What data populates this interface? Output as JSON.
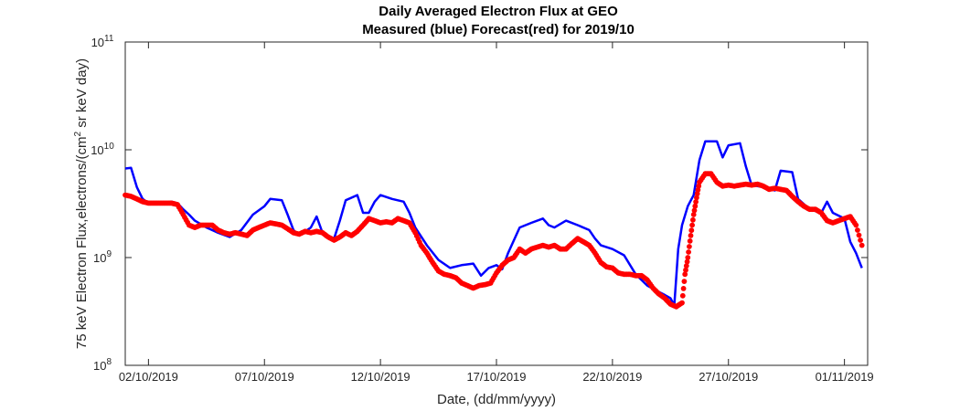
{
  "chart_data": {
    "type": "line",
    "title_lines": [
      "Daily Averaged Electron Flux at GEO",
      "Measured (blue) Forecast(red) for 2019/10"
    ],
    "xlabel": "Date, (dd/mm/yyyy)",
    "ylabel_parts": [
      "75 keV Electron Flux,electrons/(cm",
      "2",
      " sr keV day)"
    ],
    "y_scale": "log",
    "ylim": [
      100000000.0,
      100000000000.0
    ],
    "y_ticks": [
      {
        "value": 100000000.0,
        "base": "10",
        "exp": "8"
      },
      {
        "value": 1000000000.0,
        "base": "10",
        "exp": "9"
      },
      {
        "value": 10000000000.0,
        "base": "10",
        "exp": "10"
      },
      {
        "value": 100000000000.0,
        "base": "10",
        "exp": "11"
      }
    ],
    "xlim": [
      "2019-10-01",
      "2019-11-02"
    ],
    "x_ticks": [
      {
        "date": "2019-10-02",
        "label": "02/10/2019"
      },
      {
        "date": "2019-10-07",
        "label": "07/10/2019"
      },
      {
        "date": "2019-10-12",
        "label": "12/10/2019"
      },
      {
        "date": "2019-10-17",
        "label": "17/10/2019"
      },
      {
        "date": "2019-10-22",
        "label": "22/10/2019"
      },
      {
        "date": "2019-10-27",
        "label": "27/10/2019"
      },
      {
        "date": "2019-11-01",
        "label": "01/11/2019"
      }
    ],
    "grid": false,
    "series": [
      {
        "name": "Measured",
        "color": "#0000ff",
        "style": "line",
        "points": [
          [
            "2019-10-01 00:00",
            6700000000.0
          ],
          [
            "2019-10-01 06:00",
            6800000000.0
          ],
          [
            "2019-10-01 12:00",
            4500000000.0
          ],
          [
            "2019-10-01 18:00",
            3500000000.0
          ],
          [
            "2019-10-02 00:00",
            3200000000.0
          ],
          [
            "2019-10-02 12:00",
            3200000000.0
          ],
          [
            "2019-10-03 00:00",
            3300000000.0
          ],
          [
            "2019-10-03 06:00",
            3200000000.0
          ],
          [
            "2019-10-03 12:00",
            2800000000.0
          ],
          [
            "2019-10-03 18:00",
            2500000000.0
          ],
          [
            "2019-10-04 00:00",
            2200000000.0
          ],
          [
            "2019-10-04 12:00",
            1900000000.0
          ],
          [
            "2019-10-05 00:00",
            1700000000.0
          ],
          [
            "2019-10-05 12:00",
            1550000000.0
          ],
          [
            "2019-10-06 00:00",
            1800000000.0
          ],
          [
            "2019-10-06 12:00",
            2500000000.0
          ],
          [
            "2019-10-07 00:00",
            3000000000.0
          ],
          [
            "2019-10-07 06:00",
            3500000000.0
          ],
          [
            "2019-10-07 18:00",
            3400000000.0
          ],
          [
            "2019-10-08 00:00",
            2500000000.0
          ],
          [
            "2019-10-08 06:00",
            1800000000.0
          ],
          [
            "2019-10-08 12:00",
            1600000000.0
          ],
          [
            "2019-10-09 00:00",
            1900000000.0
          ],
          [
            "2019-10-09 06:00",
            2400000000.0
          ],
          [
            "2019-10-09 12:00",
            1700000000.0
          ],
          [
            "2019-10-10 00:00",
            1500000000.0
          ],
          [
            "2019-10-10 06:00",
            2200000000.0
          ],
          [
            "2019-10-10 12:00",
            3400000000.0
          ],
          [
            "2019-10-11 00:00",
            3800000000.0
          ],
          [
            "2019-10-11 06:00",
            2600000000.0
          ],
          [
            "2019-10-11 12:00",
            2600000000.0
          ],
          [
            "2019-10-11 18:00",
            3300000000.0
          ],
          [
            "2019-10-12 00:00",
            3800000000.0
          ],
          [
            "2019-10-12 12:00",
            3500000000.0
          ],
          [
            "2019-10-13 00:00",
            3300000000.0
          ],
          [
            "2019-10-13 06:00",
            2600000000.0
          ],
          [
            "2019-10-13 12:00",
            1900000000.0
          ],
          [
            "2019-10-14 00:00",
            1300000000.0
          ],
          [
            "2019-10-14 12:00",
            950000000.0
          ],
          [
            "2019-10-15 00:00",
            800000000.0
          ],
          [
            "2019-10-15 12:00",
            850000000.0
          ],
          [
            "2019-10-16 00:00",
            880000000.0
          ],
          [
            "2019-10-16 08:00",
            680000000.0
          ],
          [
            "2019-10-16 16:00",
            800000000.0
          ],
          [
            "2019-10-17 00:00",
            850000000.0
          ],
          [
            "2019-10-17 06:00",
            780000000.0
          ],
          [
            "2019-10-17 12:00",
            1100000000.0
          ],
          [
            "2019-10-18 00:00",
            1900000000.0
          ],
          [
            "2019-10-18 12:00",
            2100000000.0
          ],
          [
            "2019-10-19 00:00",
            2300000000.0
          ],
          [
            "2019-10-19 06:00",
            2000000000.0
          ],
          [
            "2019-10-19 12:00",
            1900000000.0
          ],
          [
            "2019-10-20 00:00",
            2200000000.0
          ],
          [
            "2019-10-20 12:00",
            2000000000.0
          ],
          [
            "2019-10-21 00:00",
            1800000000.0
          ],
          [
            "2019-10-21 06:00",
            1500000000.0
          ],
          [
            "2019-10-21 12:00",
            1300000000.0
          ],
          [
            "2019-10-22 00:00",
            1200000000.0
          ],
          [
            "2019-10-22 12:00",
            1050000000.0
          ],
          [
            "2019-10-23 00:00",
            700000000.0
          ],
          [
            "2019-10-23 12:00",
            550000000.0
          ],
          [
            "2019-10-24 00:00",
            480000000.0
          ],
          [
            "2019-10-24 06:00",
            450000000.0
          ],
          [
            "2019-10-24 12:00",
            420000000.0
          ],
          [
            "2019-10-24 16:00",
            360000000.0
          ],
          [
            "2019-10-24 20:00",
            1200000000.0
          ],
          [
            "2019-10-25 00:00",
            2000000000.0
          ],
          [
            "2019-10-25 06:00",
            3000000000.0
          ],
          [
            "2019-10-25 12:00",
            3800000000.0
          ],
          [
            "2019-10-25 18:00",
            8000000000.0
          ],
          [
            "2019-10-26 00:00",
            12000000000.0
          ],
          [
            "2019-10-26 12:00",
            12000000000.0
          ],
          [
            "2019-10-26 18:00",
            8500000000.0
          ],
          [
            "2019-10-27 00:00",
            11000000000.0
          ],
          [
            "2019-10-27 12:00",
            11500000000.0
          ],
          [
            "2019-10-27 18:00",
            7000000000.0
          ],
          [
            "2019-10-28 00:00",
            4700000000.0
          ],
          [
            "2019-10-28 12:00",
            4500000000.0
          ],
          [
            "2019-10-29 00:00",
            4200000000.0
          ],
          [
            "2019-10-29 06:00",
            6400000000.0
          ],
          [
            "2019-10-29 18:00",
            6200000000.0
          ],
          [
            "2019-10-30 00:00",
            3500000000.0
          ],
          [
            "2019-10-30 12:00",
            2800000000.0
          ],
          [
            "2019-10-31 00:00",
            2600000000.0
          ],
          [
            "2019-10-31 06:00",
            3300000000.0
          ],
          [
            "2019-10-31 12:00",
            2600000000.0
          ],
          [
            "2019-11-01 00:00",
            2300000000.0
          ],
          [
            "2019-11-01 06:00",
            1400000000.0
          ],
          [
            "2019-11-01 12:00",
            1100000000.0
          ],
          [
            "2019-11-01 18:00",
            800000000.0
          ]
        ]
      },
      {
        "name": "Forecast",
        "color": "#ff0000",
        "style": "markers",
        "points": [
          [
            "2019-10-01 00:00",
            3800000000.0
          ],
          [
            "2019-10-01 06:00",
            3700000000.0
          ],
          [
            "2019-10-01 12:00",
            3500000000.0
          ],
          [
            "2019-10-01 18:00",
            3300000000.0
          ],
          [
            "2019-10-02 00:00",
            3200000000.0
          ],
          [
            "2019-10-02 06:00",
            3200000000.0
          ],
          [
            "2019-10-02 12:00",
            3200000000.0
          ],
          [
            "2019-10-02 18:00",
            3200000000.0
          ],
          [
            "2019-10-03 00:00",
            3200000000.0
          ],
          [
            "2019-10-03 06:00",
            3100000000.0
          ],
          [
            "2019-10-03 12:00",
            2500000000.0
          ],
          [
            "2019-10-03 18:00",
            2000000000.0
          ],
          [
            "2019-10-04 00:00",
            1900000000.0
          ],
          [
            "2019-10-04 06:00",
            2000000000.0
          ],
          [
            "2019-10-04 12:00",
            2000000000.0
          ],
          [
            "2019-10-04 18:00",
            2000000000.0
          ],
          [
            "2019-10-05 00:00",
            1800000000.0
          ],
          [
            "2019-10-05 06:00",
            1700000000.0
          ],
          [
            "2019-10-05 12:00",
            1650000000.0
          ],
          [
            "2019-10-05 18:00",
            1700000000.0
          ],
          [
            "2019-10-06 00:00",
            1650000000.0
          ],
          [
            "2019-10-06 06:00",
            1600000000.0
          ],
          [
            "2019-10-06 12:00",
            1800000000.0
          ],
          [
            "2019-10-06 18:00",
            1900000000.0
          ],
          [
            "2019-10-07 00:00",
            2000000000.0
          ],
          [
            "2019-10-07 06:00",
            2100000000.0
          ],
          [
            "2019-10-07 12:00",
            2050000000.0
          ],
          [
            "2019-10-07 18:00",
            2000000000.0
          ],
          [
            "2019-10-08 00:00",
            1850000000.0
          ],
          [
            "2019-10-08 06:00",
            1700000000.0
          ],
          [
            "2019-10-08 12:00",
            1650000000.0
          ],
          [
            "2019-10-08 18:00",
            1750000000.0
          ],
          [
            "2019-10-09 00:00",
            1700000000.0
          ],
          [
            "2019-10-09 06:00",
            1750000000.0
          ],
          [
            "2019-10-09 12:00",
            1700000000.0
          ],
          [
            "2019-10-09 18:00",
            1550000000.0
          ],
          [
            "2019-10-10 00:00",
            1450000000.0
          ],
          [
            "2019-10-10 06:00",
            1550000000.0
          ],
          [
            "2019-10-10 12:00",
            1700000000.0
          ],
          [
            "2019-10-10 18:00",
            1600000000.0
          ],
          [
            "2019-10-11 00:00",
            1750000000.0
          ],
          [
            "2019-10-11 06:00",
            2000000000.0
          ],
          [
            "2019-10-11 12:00",
            2300000000.0
          ],
          [
            "2019-10-11 18:00",
            2200000000.0
          ],
          [
            "2019-10-12 00:00",
            2100000000.0
          ],
          [
            "2019-10-12 06:00",
            2150000000.0
          ],
          [
            "2019-10-12 12:00",
            2100000000.0
          ],
          [
            "2019-10-12 18:00",
            2300000000.0
          ],
          [
            "2019-10-13 00:00",
            2200000000.0
          ],
          [
            "2019-10-13 06:00",
            2100000000.0
          ],
          [
            "2019-10-13 12:00",
            1700000000.0
          ],
          [
            "2019-10-13 18:00",
            1300000000.0
          ],
          [
            "2019-10-14 00:00",
            1100000000.0
          ],
          [
            "2019-10-14 06:00",
            900000000.0
          ],
          [
            "2019-10-14 12:00",
            750000000.0
          ],
          [
            "2019-10-14 18:00",
            700000000.0
          ],
          [
            "2019-10-15 00:00",
            680000000.0
          ],
          [
            "2019-10-15 06:00",
            650000000.0
          ],
          [
            "2019-10-15 12:00",
            580000000.0
          ],
          [
            "2019-10-15 18:00",
            550000000.0
          ],
          [
            "2019-10-16 00:00",
            520000000.0
          ],
          [
            "2019-10-16 06:00",
            550000000.0
          ],
          [
            "2019-10-16 12:00",
            560000000.0
          ],
          [
            "2019-10-16 18:00",
            580000000.0
          ],
          [
            "2019-10-17 00:00",
            720000000.0
          ],
          [
            "2019-10-17 06:00",
            850000000.0
          ],
          [
            "2019-10-17 12:00",
            950000000.0
          ],
          [
            "2019-10-17 18:00",
            1000000000.0
          ],
          [
            "2019-10-18 00:00",
            1200000000.0
          ],
          [
            "2019-10-18 06:00",
            1100000000.0
          ],
          [
            "2019-10-18 12:00",
            1200000000.0
          ],
          [
            "2019-10-18 18:00",
            1250000000.0
          ],
          [
            "2019-10-19 00:00",
            1300000000.0
          ],
          [
            "2019-10-19 06:00",
            1250000000.0
          ],
          [
            "2019-10-19 12:00",
            1300000000.0
          ],
          [
            "2019-10-19 18:00",
            1200000000.0
          ],
          [
            "2019-10-20 00:00",
            1200000000.0
          ],
          [
            "2019-10-20 06:00",
            1350000000.0
          ],
          [
            "2019-10-20 12:00",
            1500000000.0
          ],
          [
            "2019-10-20 18:00",
            1400000000.0
          ],
          [
            "2019-10-21 00:00",
            1300000000.0
          ],
          [
            "2019-10-21 06:00",
            1100000000.0
          ],
          [
            "2019-10-21 12:00",
            900000000.0
          ],
          [
            "2019-10-21 18:00",
            820000000.0
          ],
          [
            "2019-10-22 00:00",
            800000000.0
          ],
          [
            "2019-10-22 06:00",
            720000000.0
          ],
          [
            "2019-10-22 12:00",
            700000000.0
          ],
          [
            "2019-10-22 18:00",
            700000000.0
          ],
          [
            "2019-10-23 00:00",
            680000000.0
          ],
          [
            "2019-10-23 06:00",
            680000000.0
          ],
          [
            "2019-10-23 12:00",
            620000000.0
          ],
          [
            "2019-10-23 18:00",
            520000000.0
          ],
          [
            "2019-10-24 00:00",
            460000000.0
          ],
          [
            "2019-10-24 06:00",
            420000000.0
          ],
          [
            "2019-10-24 12:00",
            370000000.0
          ],
          [
            "2019-10-24 18:00",
            350000000.0
          ],
          [
            "2019-10-25 00:00",
            380000000.0
          ],
          [
            "2019-10-25 03:00",
            700000000.0
          ],
          [
            "2019-10-25 06:00",
            1000000000.0
          ],
          [
            "2019-10-25 09:00",
            1600000000.0
          ],
          [
            "2019-10-25 12:00",
            2500000000.0
          ],
          [
            "2019-10-25 15:00",
            3600000000.0
          ],
          [
            "2019-10-25 18:00",
            5000000000.0
          ],
          [
            "2019-10-26 00:00",
            6000000000.0
          ],
          [
            "2019-10-26 06:00",
            6000000000.0
          ],
          [
            "2019-10-26 12:00",
            5000000000.0
          ],
          [
            "2019-10-26 18:00",
            4600000000.0
          ],
          [
            "2019-10-27 00:00",
            4700000000.0
          ],
          [
            "2019-10-27 06:00",
            4600000000.0
          ],
          [
            "2019-10-27 12:00",
            4700000000.0
          ],
          [
            "2019-10-27 18:00",
            4800000000.0
          ],
          [
            "2019-10-28 00:00",
            4700000000.0
          ],
          [
            "2019-10-28 06:00",
            4800000000.0
          ],
          [
            "2019-10-28 12:00",
            4600000000.0
          ],
          [
            "2019-10-28 18:00",
            4300000000.0
          ],
          [
            "2019-10-29 00:00",
            4400000000.0
          ],
          [
            "2019-10-29 06:00",
            4300000000.0
          ],
          [
            "2019-10-29 12:00",
            4200000000.0
          ],
          [
            "2019-10-29 18:00",
            3700000000.0
          ],
          [
            "2019-10-30 00:00",
            3300000000.0
          ],
          [
            "2019-10-30 06:00",
            3000000000.0
          ],
          [
            "2019-10-30 12:00",
            2800000000.0
          ],
          [
            "2019-10-30 18:00",
            2800000000.0
          ],
          [
            "2019-10-31 00:00",
            2600000000.0
          ],
          [
            "2019-10-31 06:00",
            2200000000.0
          ],
          [
            "2019-10-31 12:00",
            2100000000.0
          ],
          [
            "2019-10-31 18:00",
            2200000000.0
          ],
          [
            "2019-11-01 00:00",
            2300000000.0
          ],
          [
            "2019-11-01 06:00",
            2400000000.0
          ],
          [
            "2019-11-01 12:00",
            2000000000.0
          ],
          [
            "2019-11-01 18:00",
            1300000000.0
          ]
        ]
      }
    ]
  }
}
